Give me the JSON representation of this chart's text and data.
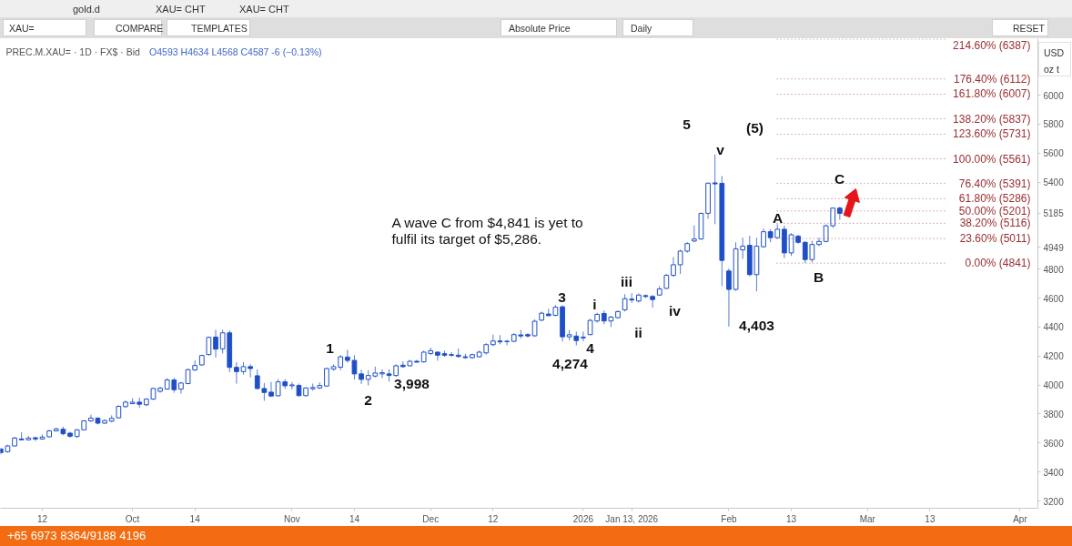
{
  "chart_data": {
    "type": "candlestick",
    "title": "PREC.M.XAU= · 1D · FX$ · Bid",
    "subtitle": "O4593 H4634 L4568 C4587 -6 (−0.13%)",
    "annotations": [
      "A wave C from $4,841 is yet to fulfil its target of $5,286.",
      "+65 6973 8364/9188 4196",
      "gold.d",
      "XAU= CHT",
      "XAU= CHT",
      "XAU=",
      "COMPARE",
      "TEMPLATES",
      "Absolute Price",
      "Daily",
      "RESET",
      "USD",
      "oz t",
      "5",
      "(5)",
      "v",
      "A",
      "B",
      "C",
      "4,403",
      "iii",
      "iv",
      "ii",
      "i",
      "3",
      "4",
      "4,274",
      "1",
      "2",
      "3,998"
    ],
    "categories": [
      null,
      null,
      null,
      null,
      null,
      null,
      "12",
      null,
      null,
      null,
      null,
      null,
      null,
      null,
      null,
      null,
      null,
      null,
      null,
      "Oct",
      null,
      null,
      null,
      null,
      null,
      null,
      null,
      null,
      "14",
      null,
      null,
      null,
      null,
      null,
      null,
      null,
      null,
      null,
      null,
      null,
      null,
      null,
      "Nov",
      null,
      null,
      null,
      null,
      null,
      null,
      null,
      null,
      "14",
      null,
      null,
      null,
      null,
      null,
      null,
      null,
      null,
      null,
      null,
      "Dec",
      null,
      null,
      null,
      null,
      null,
      null,
      null,
      null,
      "12",
      null,
      null,
      null,
      null,
      null,
      null,
      null,
      null,
      null,
      null,
      null,
      null,
      "2026",
      null,
      null,
      null,
      null,
      null,
      null,
      "Jan 13, 2026",
      null,
      null,
      null,
      null,
      null,
      null,
      null,
      null,
      null,
      null,
      null,
      null,
      null,
      "Feb",
      null,
      null,
      null,
      null,
      null,
      null,
      null,
      null,
      "13",
      null,
      null,
      null,
      null,
      null,
      null,
      null,
      null,
      null,
      null,
      "Mar",
      null,
      null,
      null,
      null,
      null,
      null,
      null,
      null,
      "13",
      null,
      null,
      null,
      null,
      null,
      null,
      null,
      null,
      null,
      null,
      null,
      null,
      "Apr",
      null,
      null
    ],
    "ohlc": [
      [
        3559,
        3566,
        3522,
        3534
      ],
      [
        3540,
        3588,
        3534,
        3580
      ],
      [
        3580,
        3643,
        3576,
        3634
      ],
      [
        3628,
        3674,
        3618,
        3622
      ],
      [
        3622,
        3649,
        3618,
        3634
      ],
      [
        3636,
        3645,
        3614,
        3628
      ],
      [
        3628,
        3659,
        3622,
        3641
      ],
      [
        3643,
        3691,
        3638,
        3684
      ],
      [
        3684,
        3707,
        3680,
        3697
      ],
      [
        3695,
        3712,
        3653,
        3664
      ],
      [
        3668,
        3678,
        3636,
        3647
      ],
      [
        3645,
        3695,
        3636,
        3691
      ],
      [
        3691,
        3757,
        3687,
        3753
      ],
      [
        3753,
        3795,
        3745,
        3772
      ],
      [
        3772,
        3778,
        3728,
        3737
      ],
      [
        3737,
        3764,
        3730,
        3755
      ],
      [
        3751,
        3791,
        3743,
        3770
      ],
      [
        3774,
        3860,
        3770,
        3853
      ],
      [
        3851,
        3893,
        3843,
        3882
      ],
      [
        3872,
        3909,
        3868,
        3882
      ],
      [
        3882,
        3913,
        3843,
        3868
      ],
      [
        3864,
        3909,
        3855,
        3903
      ],
      [
        3903,
        3982,
        3897,
        3976
      ],
      [
        3957,
        3989,
        3947,
        3978
      ],
      [
        3972,
        4049,
        3968,
        4035
      ],
      [
        4035,
        4049,
        3947,
        3968
      ],
      [
        3972,
        4022,
        3941,
        4014
      ],
      [
        4010,
        4114,
        4006,
        4106
      ],
      [
        4104,
        4170,
        4097,
        4135
      ],
      [
        4139,
        4210,
        4135,
        4204
      ],
      [
        4210,
        4335,
        4204,
        4329
      ],
      [
        4331,
        4381,
        4189,
        4248
      ],
      [
        4250,
        4381,
        4218,
        4360
      ],
      [
        4360,
        4377,
        4089,
        4122
      ],
      [
        4122,
        4158,
        4010,
        4093
      ],
      [
        4093,
        4158,
        4072,
        4127
      ],
      [
        4127,
        4143,
        4053,
        4114
      ],
      [
        4064,
        4108,
        3970,
        3976
      ],
      [
        3976,
        4014,
        3891,
        3949
      ],
      [
        3951,
        4022,
        3918,
        3924
      ],
      [
        3926,
        4041,
        3920,
        4022
      ],
      [
        4022,
        4041,
        3974,
        3995
      ],
      [
        3995,
        4020,
        3970,
        4001
      ],
      [
        3997,
        4010,
        3920,
        3927
      ],
      [
        3927,
        3985,
        3921,
        3980
      ],
      [
        3975,
        4010,
        3962,
        3983
      ],
      [
        3980,
        4018,
        3972,
        3997
      ],
      [
        3993,
        4120,
        3987,
        4114
      ],
      [
        4110,
        4143,
        4100,
        4127
      ],
      [
        4123,
        4206,
        4102,
        4195
      ],
      [
        4193,
        4243,
        4154,
        4170
      ],
      [
        4170,
        4206,
        4039,
        4077
      ],
      [
        4077,
        4106,
        4008,
        4039
      ],
      [
        4039,
        4102,
        3998,
        4066
      ],
      [
        4062,
        4127,
        4052,
        4083
      ],
      [
        4077,
        4108,
        4047,
        4085
      ],
      [
        4077,
        4108,
        4024,
        4066
      ],
      [
        4066,
        4143,
        4056,
        4133
      ],
      [
        4137,
        4164,
        4118,
        4127
      ],
      [
        4133,
        4174,
        4127,
        4164
      ],
      [
        4164,
        4174,
        4154,
        4158
      ],
      [
        4160,
        4237,
        4154,
        4227
      ],
      [
        4218,
        4258,
        4206,
        4237
      ],
      [
        4227,
        4231,
        4168,
        4206
      ],
      [
        4216,
        4237,
        4195,
        4206
      ],
      [
        4210,
        4227,
        4195,
        4206
      ],
      [
        4206,
        4252,
        4189,
        4197
      ],
      [
        4195,
        4216,
        4181,
        4189
      ],
      [
        4189,
        4216,
        4181,
        4210
      ],
      [
        4195,
        4237,
        4189,
        4227
      ],
      [
        4222,
        4289,
        4210,
        4279
      ],
      [
        4279,
        4348,
        4268,
        4304
      ],
      [
        4304,
        4344,
        4281,
        4298
      ],
      [
        4302,
        4312,
        4275,
        4300
      ],
      [
        4302,
        4358,
        4296,
        4348
      ],
      [
        4346,
        4381,
        4321,
        4339
      ],
      [
        4348,
        4358,
        4327,
        4339
      ],
      [
        4340,
        4454,
        4332,
        4440
      ],
      [
        4448,
        4506,
        4440,
        4496
      ],
      [
        4490,
        4527,
        4475,
        4479
      ],
      [
        4481,
        4552,
        4475,
        4537
      ],
      [
        4540,
        4550,
        4300,
        4333
      ],
      [
        4333,
        4380,
        4308,
        4347
      ],
      [
        4338,
        4369,
        4274,
        4307
      ],
      [
        4325,
        4369,
        4302,
        4331
      ],
      [
        4348,
        4457,
        4344,
        4446
      ],
      [
        4442,
        4498,
        4430,
        4488
      ],
      [
        4494,
        4515,
        4419,
        4442
      ],
      [
        4442,
        4477,
        4400,
        4469
      ],
      [
        4465,
        4515,
        4459,
        4507
      ],
      [
        4519,
        4627,
        4507,
        4596
      ],
      [
        4593,
        4634,
        4568,
        4587
      ],
      [
        4580,
        4632,
        4570,
        4621
      ],
      [
        4617,
        4625,
        4600,
        4611
      ],
      [
        4611,
        4621,
        4534,
        4590
      ],
      [
        4621,
        4684,
        4617,
        4663
      ],
      [
        4667,
        4767,
        4663,
        4757
      ],
      [
        4757,
        4882,
        4747,
        4830
      ],
      [
        4830,
        4934,
        4767,
        4924
      ],
      [
        4924,
        4986,
        4913,
        4976
      ],
      [
        4994,
        5102,
        4986,
        5008
      ],
      [
        5008,
        5189,
        5002,
        5185
      ],
      [
        5185,
        5397,
        5147,
        5393
      ],
      [
        5395,
        5591,
        5110,
        5388
      ],
      [
        5392,
        5442,
        4683,
        4860
      ],
      [
        4787,
        4805,
        4403,
        4660
      ],
      [
        4660,
        4985,
        4650,
        4940
      ],
      [
        4933,
        5017,
        4871,
        4958
      ],
      [
        4964,
        5030,
        4750,
        4762
      ],
      [
        4762,
        5017,
        4646,
        4958
      ],
      [
        4954,
        5079,
        4950,
        5058
      ],
      [
        5058,
        5075,
        4985,
        5017
      ],
      [
        5017,
        5110,
        5010,
        5075
      ],
      [
        5075,
        5100,
        4875,
        4912
      ],
      [
        4912,
        5048,
        4891,
        5037
      ],
      [
        5027,
        5037,
        4975,
        4985
      ],
      [
        4985,
        4991,
        4841,
        4866
      ],
      [
        4866,
        4996,
        4846,
        4970
      ],
      [
        4970,
        5017,
        4958,
        4991
      ],
      [
        4991,
        5108,
        4985,
        5099
      ],
      [
        5099,
        5225,
        5085,
        5221
      ],
      [
        5221,
        5231,
        5140,
        5185
      ],
      null,
      null,
      null,
      null,
      null,
      null,
      null,
      null,
      null,
      null,
      null,
      null,
      null,
      null,
      null,
      null,
      null,
      null,
      null,
      null,
      null,
      null,
      null,
      null,
      null,
      null,
      null,
      null
    ],
    "color": "#1f4fc8",
    "ylim": [
      3150,
      6390
    ],
    "yticks": [
      3200,
      3400,
      3600,
      3800,
      4000,
      4200,
      4400,
      4600,
      4800,
      4949,
      5185,
      5400,
      5600,
      5800,
      6000
    ],
    "ref_lines": [
      {
        "axis": "y",
        "value": 6387,
        "label": "214.60% (6387)",
        "color": "#9b2d30",
        "line_style": "dotted"
      },
      {
        "axis": "y",
        "value": 6112,
        "label": "176.40% (6112)",
        "color": "#9b2d30",
        "line_style": "dotted"
      },
      {
        "axis": "y",
        "value": 6007,
        "label": "161.80% (6007)",
        "color": "#9b2d30",
        "line_style": "dotted"
      },
      {
        "axis": "y",
        "value": 5837,
        "label": "138.20% (5837)",
        "color": "#9b2d30",
        "line_style": "dotted"
      },
      {
        "axis": "y",
        "value": 5731,
        "label": "123.60% (5731)",
        "color": "#9b2d30",
        "line_style": "dotted"
      },
      {
        "axis": "y",
        "value": 5561,
        "label": "100.00% (5561)",
        "color": "#9b2d30",
        "line_style": "dotted"
      },
      {
        "axis": "y",
        "value": 5391,
        "label": "76.40% (5391)",
        "color": "#9b2d30",
        "line_style": "dotted"
      },
      {
        "axis": "y",
        "value": 5286,
        "label": "61.80% (5286)",
        "color": "#9b2d30",
        "line_style": "dotted"
      },
      {
        "axis": "y",
        "value": 5201,
        "label": "50.00% (5201)",
        "color": "#9b2d30",
        "line_style": "dotted"
      },
      {
        "axis": "y",
        "value": 5116,
        "label": "38.20% (5116)",
        "color": "#9b2d30",
        "line_style": "dotted"
      },
      {
        "axis": "y",
        "value": 5011,
        "label": "23.60% (5011)",
        "color": "#9b2d30",
        "line_style": "dotted"
      },
      {
        "axis": "y",
        "value": 4841,
        "label": "0.00% (4841)",
        "color": "#9b2d30",
        "line_style": "dotted"
      }
    ]
  }
}
